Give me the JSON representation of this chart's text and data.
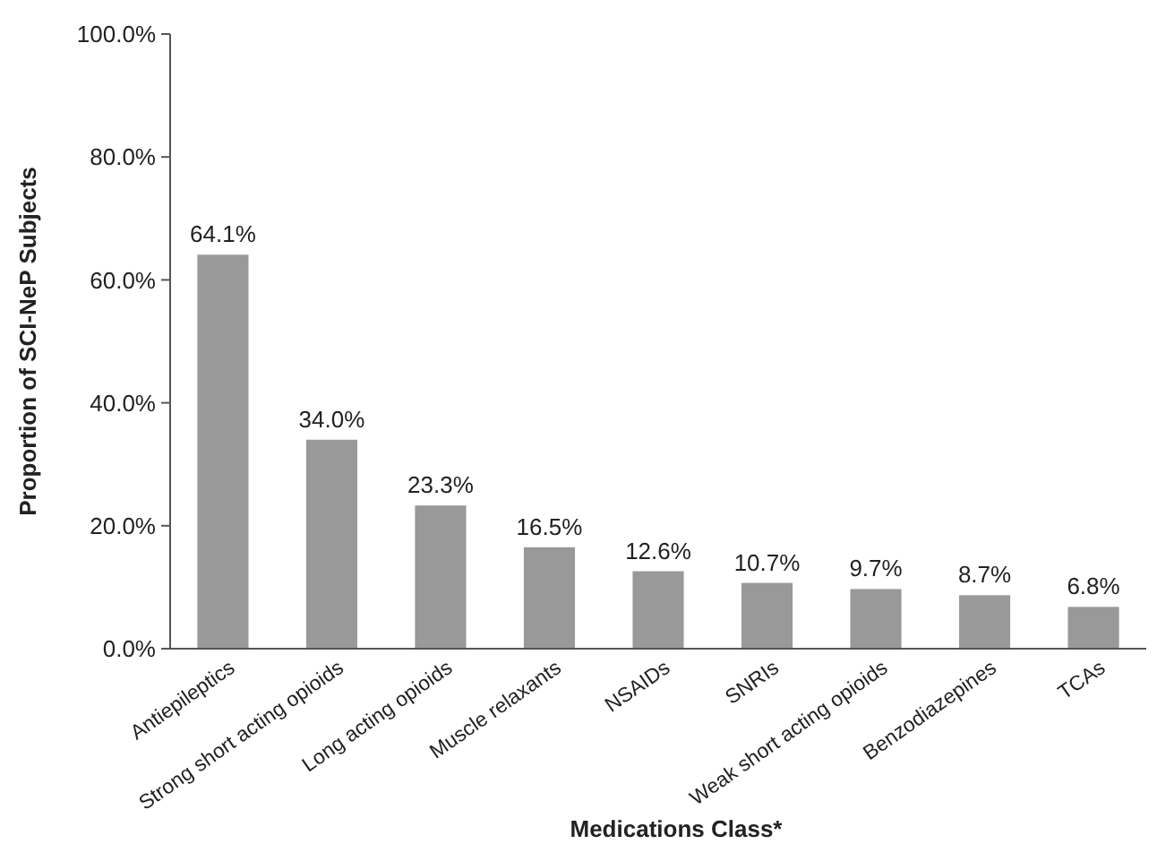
{
  "chart_data": {
    "type": "bar",
    "xlabel": "Medications Class*",
    "ylabel": "Proportion of SCI-NeP Subjects",
    "categories": [
      "Antiepileptics",
      "Strong short acting opioids",
      "Long acting opioids",
      "Muscle relaxants",
      "NSAIDs",
      "SNRIs",
      "Weak short acting opioids",
      "Benzodiazepines",
      "TCAs"
    ],
    "values": [
      64.1,
      34.0,
      23.3,
      16.5,
      12.6,
      10.7,
      9.7,
      8.7,
      6.8
    ],
    "value_labels": [
      "64.1%",
      "34.0%",
      "23.3%",
      "16.5%",
      "12.6%",
      "10.7%",
      "9.7%",
      "8.7%",
      "6.8%"
    ],
    "color": "#999999",
    "ylim": [
      0,
      100
    ],
    "yticks": [
      {
        "value": 0,
        "label": "0.0%"
      },
      {
        "value": 20,
        "label": "20.0%"
      },
      {
        "value": 40,
        "label": "40.0%"
      },
      {
        "value": 60,
        "label": "60.0%"
      },
      {
        "value": 80,
        "label": "80.0%"
      },
      {
        "value": 100,
        "label": "100.0%"
      }
    ],
    "grid": false
  }
}
